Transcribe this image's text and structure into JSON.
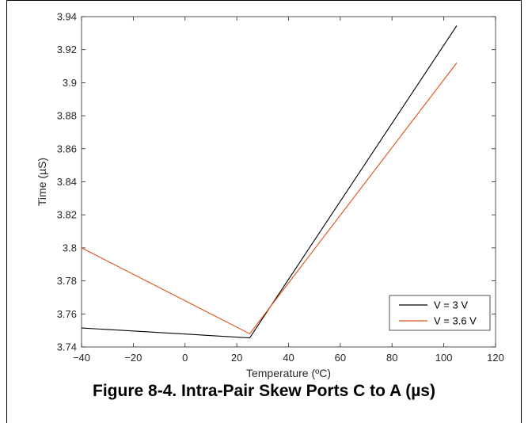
{
  "caption": "Figure 8-4. Intra-Pair Skew Ports C to A (µs)",
  "chart_data": {
    "type": "line",
    "title": "",
    "xlabel": "Temperature (ºC)",
    "ylabel": "Time (µS)",
    "xlim": [
      -40,
      120
    ],
    "ylim": [
      3.74,
      3.94
    ],
    "xticks": [
      -40,
      -20,
      0,
      20,
      40,
      60,
      80,
      100,
      120
    ],
    "xtick_labels": [
      "−40",
      "−20",
      "0",
      "20",
      "40",
      "60",
      "80",
      "100",
      "120"
    ],
    "yticks": [
      3.74,
      3.76,
      3.78,
      3.8,
      3.82,
      3.84,
      3.86,
      3.88,
      3.9,
      3.92,
      3.94
    ],
    "ytick_labels": [
      "3.74",
      "3.76",
      "3.78",
      "3.8",
      "3.82",
      "3.84",
      "3.86",
      "3.88",
      "3.9",
      "3.92",
      "3.94"
    ],
    "grid": false,
    "legend_position": "bottom-right",
    "series": [
      {
        "name": "V = 3 V",
        "color": "#000000",
        "x": [
          -40,
          25,
          105
        ],
        "y": [
          3.7515,
          3.7455,
          3.9345
        ]
      },
      {
        "name": "V = 3.6 V",
        "color": "#d95319",
        "x": [
          -40,
          25,
          105
        ],
        "y": [
          3.8,
          3.748,
          3.912
        ]
      }
    ]
  }
}
